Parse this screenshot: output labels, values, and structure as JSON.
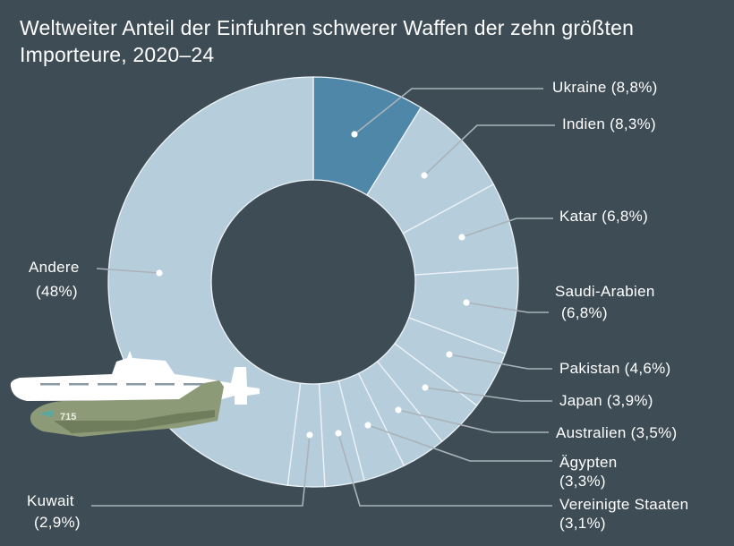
{
  "chart_data": {
    "type": "pie",
    "variant": "donut",
    "title": "Weltweiter Anteil der Einfuhren schwerer Waffen der zehn größten Importeure, 2020–24",
    "unit": "%",
    "slices": [
      {
        "label": "Ukraine",
        "value": 8.8,
        "text": "Ukraine (8,8%)",
        "color": "#4f87a8"
      },
      {
        "label": "Indien",
        "value": 8.3,
        "text": "Indien (8,3%)",
        "color": "#b6cddc"
      },
      {
        "label": "Katar",
        "value": 6.8,
        "text": "Katar  (6,8%)",
        "color": "#b6cddc"
      },
      {
        "label": "Saudi-Arabien",
        "value": 6.8,
        "text": "Saudi-Arabien",
        "text2": "(6,8%)",
        "color": "#b6cddc"
      },
      {
        "label": "Pakistan",
        "value": 4.6,
        "text": "Pakistan (4,6%)",
        "color": "#b6cddc"
      },
      {
        "label": "Japan",
        "value": 3.9,
        "text": "Japan (3,9%)",
        "color": "#b6cddc"
      },
      {
        "label": "Australien",
        "value": 3.5,
        "text": "Australien (3,5%)",
        "color": "#b6cddc"
      },
      {
        "label": "Ägypten",
        "value": 3.3,
        "text": "Ägypten",
        "text2": "(3,3%)",
        "color": "#b6cddc"
      },
      {
        "label": "Vereinigte Staaten",
        "value": 3.1,
        "text": "Vereinigte Staaten",
        "text2": "(3,1%)",
        "color": "#b6cddc"
      },
      {
        "label": "Kuwait",
        "value": 2.9,
        "text": "Kuwait",
        "text2": "(2,9%)",
        "color": "#b6cddc"
      },
      {
        "label": "Andere",
        "value": 48,
        "text": "Andere",
        "text2": "(48%)",
        "color": "#b6cddc"
      }
    ],
    "legend": "none (direct labels)",
    "background": "#3e4c55",
    "illustration_text": "715"
  }
}
